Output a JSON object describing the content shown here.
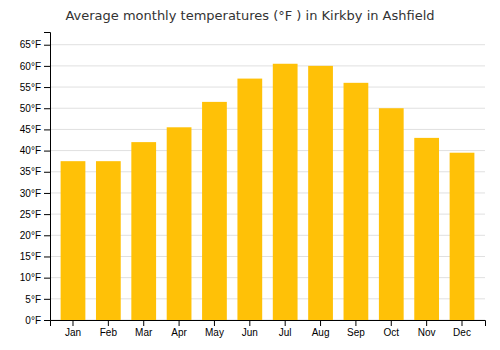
{
  "chart_data": {
    "type": "bar",
    "title": "Average monthly temperatures (°F ) in Kirkby in Ashfield",
    "categories": [
      "Jan",
      "Feb",
      "Mar",
      "Apr",
      "May",
      "Jun",
      "Jul",
      "Aug",
      "Sep",
      "Oct",
      "Nov",
      "Dec"
    ],
    "values": [
      37.5,
      37.5,
      42.0,
      45.5,
      51.5,
      57.0,
      60.5,
      60.0,
      56.0,
      50.0,
      43.0,
      39.5
    ],
    "color": "#FFC107",
    "ylim": [
      0,
      68
    ],
    "yticks": [
      {
        "value": 0,
        "label": "0°F"
      },
      {
        "value": 5,
        "label": "5°F"
      },
      {
        "value": 10,
        "label": "10°F"
      },
      {
        "value": 15,
        "label": "15°F"
      },
      {
        "value": 20,
        "label": "20°F"
      },
      {
        "value": 25,
        "label": "25°F"
      },
      {
        "value": 30,
        "label": "30°F"
      },
      {
        "value": 35,
        "label": "35°F"
      },
      {
        "value": 40,
        "label": "40°F"
      },
      {
        "value": 45,
        "label": "45°F"
      },
      {
        "value": 50,
        "label": "50°F"
      },
      {
        "value": 55,
        "label": "55°F"
      },
      {
        "value": 60,
        "label": "60°F"
      },
      {
        "value": 65,
        "label": "65°F"
      }
    ],
    "grid": true
  }
}
